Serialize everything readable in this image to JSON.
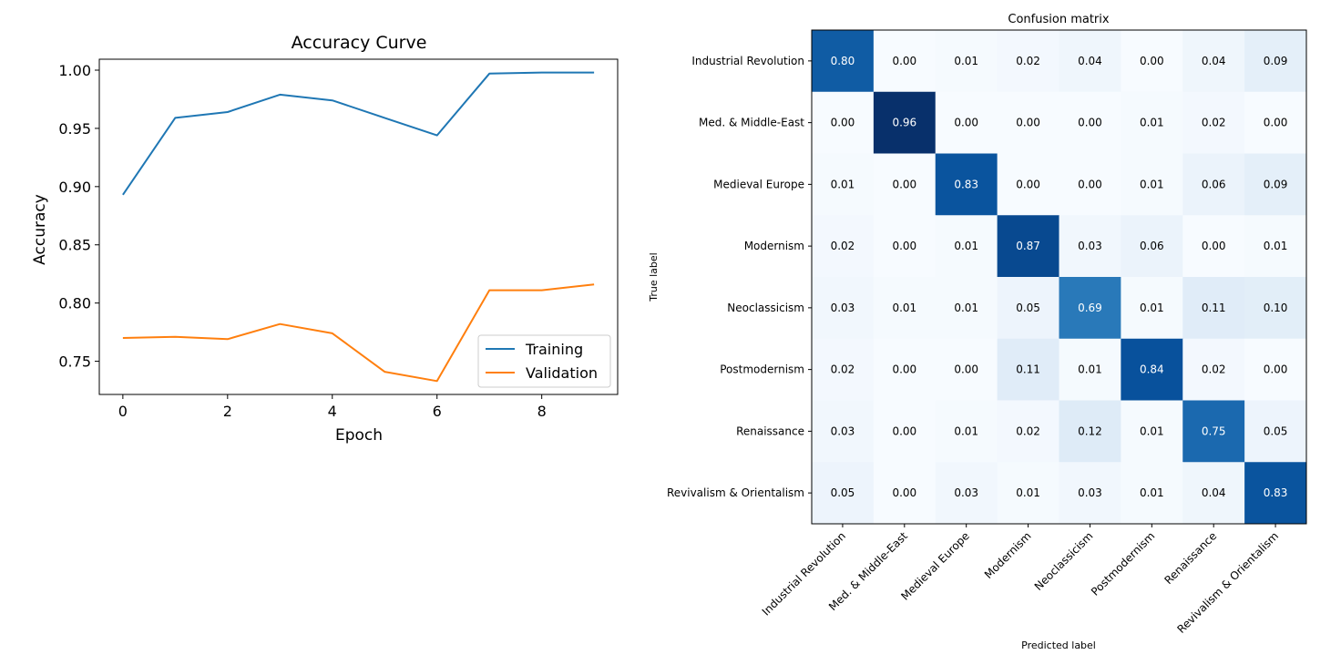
{
  "chart_data": [
    {
      "type": "line",
      "title": "Accuracy Curve",
      "xlabel": "Epoch",
      "ylabel": "Accuracy",
      "x": [
        0,
        1,
        2,
        3,
        4,
        5,
        6,
        7,
        8,
        9
      ],
      "xticks": [
        "0",
        "2",
        "4",
        "6",
        "8"
      ],
      "xtick_values": [
        0,
        2,
        4,
        6,
        8
      ],
      "yticks": [
        "1.00",
        "0.95",
        "0.90",
        "0.85",
        "0.80",
        "0.75"
      ],
      "ytick_values": [
        1.0,
        0.95,
        0.9,
        0.85,
        0.8,
        0.75
      ],
      "xlim": [
        -0.45,
        9.45
      ],
      "ylim": [
        0.7215,
        1.0094
      ],
      "legend_position": "lower-right",
      "series": [
        {
          "name": "Training",
          "color": "#1f77b4",
          "values": [
            0.893,
            0.959,
            0.964,
            0.979,
            0.974,
            0.959,
            0.944,
            0.997,
            0.998,
            0.998
          ]
        },
        {
          "name": "Validation",
          "color": "#ff7f0e",
          "values": [
            0.77,
            0.771,
            0.769,
            0.782,
            0.774,
            0.741,
            0.733,
            0.811,
            0.811,
            0.816
          ]
        }
      ]
    },
    {
      "type": "heatmap",
      "title": "Confusion matrix",
      "xlabel": "Predicted label",
      "ylabel": "True label",
      "colormap": "Blues",
      "labels": [
        "Industrial Revolution",
        "Med. & Middle-East",
        "Medieval Europe",
        "Modernism",
        "Neoclassicism",
        "Postmodernism",
        "Renaissance",
        "Revivalism & Orientalism"
      ],
      "matrix": [
        [
          0.8,
          0.0,
          0.01,
          0.02,
          0.04,
          0.0,
          0.04,
          0.09
        ],
        [
          0.0,
          0.96,
          0.0,
          0.0,
          0.0,
          0.01,
          0.02,
          0.0
        ],
        [
          0.01,
          0.0,
          0.83,
          0.0,
          0.0,
          0.01,
          0.06,
          0.09
        ],
        [
          0.02,
          0.0,
          0.01,
          0.87,
          0.03,
          0.06,
          0.0,
          0.01
        ],
        [
          0.03,
          0.01,
          0.01,
          0.05,
          0.69,
          0.01,
          0.11,
          0.1
        ],
        [
          0.02,
          0.0,
          0.0,
          0.11,
          0.01,
          0.84,
          0.02,
          0.0
        ],
        [
          0.03,
          0.0,
          0.01,
          0.02,
          0.12,
          0.01,
          0.75,
          0.05
        ],
        [
          0.05,
          0.0,
          0.03,
          0.01,
          0.03,
          0.01,
          0.04,
          0.83
        ]
      ]
    }
  ]
}
